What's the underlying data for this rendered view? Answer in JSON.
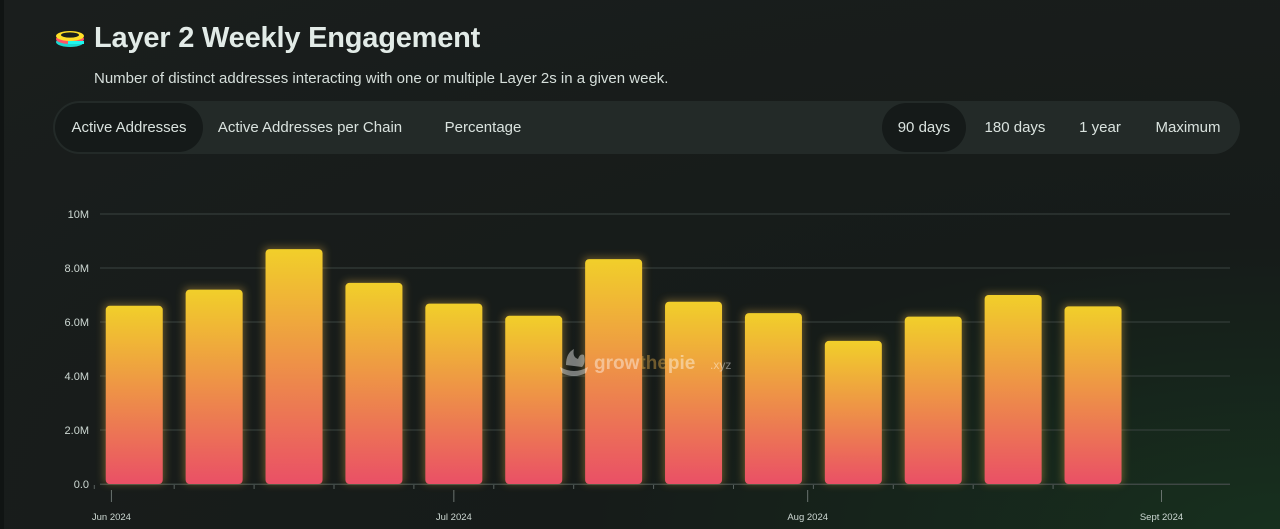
{
  "header": {
    "title": "Layer 2 Weekly Engagement",
    "subtitle": "Number of distinct addresses interacting with one or multiple Layer 2s in a given week.",
    "logo_icon": "stacked-disks-icon"
  },
  "metric_tabs": [
    {
      "label": "Active Addresses",
      "active": true
    },
    {
      "label": "Active Addresses per Chain",
      "active": false
    },
    {
      "label": "Percentage",
      "active": false
    }
  ],
  "range_tabs": [
    {
      "label": "90 days",
      "active": true
    },
    {
      "label": "180 days",
      "active": false
    },
    {
      "label": "1 year",
      "active": false
    },
    {
      "label": "Maximum",
      "active": false
    }
  ],
  "watermark": {
    "brand": "growthepie",
    "brand_highlight": "the",
    "suffix": ".xyz"
  },
  "colors": {
    "bar_top": "#f1cf2a",
    "bar_bottom": "#ea5066",
    "accent_teal": "#1df7ef"
  },
  "chart_data": {
    "type": "bar",
    "title": "",
    "xlabel": "",
    "ylabel": "",
    "ylim": [
      0,
      10000000
    ],
    "y_ticks": [
      0,
      2000000,
      4000000,
      6000000,
      8000000,
      10000000
    ],
    "y_tick_labels": [
      "0.0",
      "2.0M",
      "4.0M",
      "6.0M",
      "8.0M",
      "10M"
    ],
    "x_range": [
      "2024-05-31",
      "2024-09-07"
    ],
    "x_tick_labels": [
      {
        "date": "2024-06-01",
        "label": "Jun 2024"
      },
      {
        "date": "2024-07-01",
        "label": "Jul 2024"
      },
      {
        "date": "2024-08-01",
        "label": "Aug 2024"
      },
      {
        "date": "2024-09-01",
        "label": "Sept 2024"
      }
    ],
    "weeks": [
      "2024-06-03",
      "2024-06-10",
      "2024-06-17",
      "2024-06-24",
      "2024-07-01",
      "2024-07-08",
      "2024-07-15",
      "2024-07-22",
      "2024-07-29",
      "2024-08-05",
      "2024-08-12",
      "2024-08-19",
      "2024-08-26"
    ],
    "values": [
      6600000,
      7200000,
      8700000,
      7450000,
      6680000,
      6230000,
      8330000,
      6750000,
      6330000,
      5300000,
      6200000,
      7000000,
      6580000
    ],
    "grid": true,
    "legend": "none"
  }
}
